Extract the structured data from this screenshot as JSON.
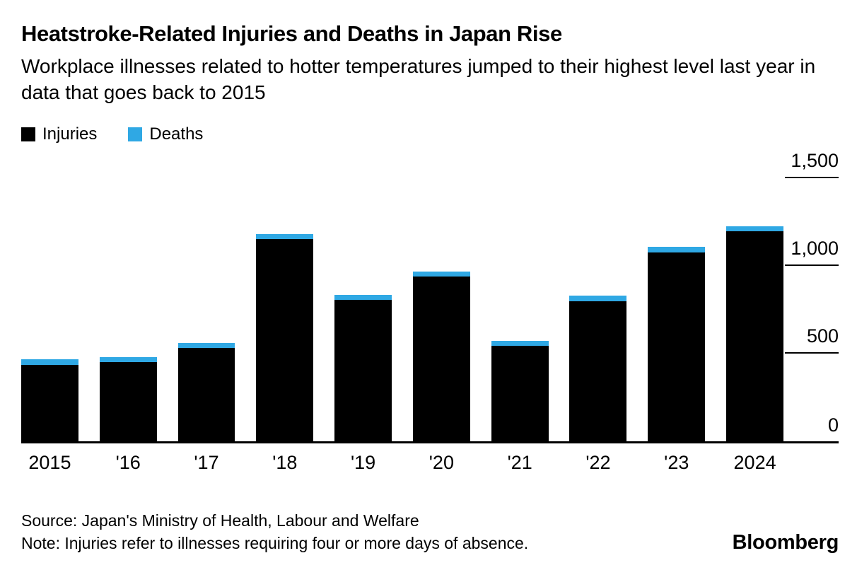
{
  "header": {
    "title": "Heatstroke-Related Injuries and Deaths in Japan Rise",
    "subtitle": "Workplace illnesses related to hotter temperatures jumped to their highest level last year in data that goes back to 2015"
  },
  "legend": [
    {
      "label": "Injuries",
      "color": "#000000"
    },
    {
      "label": "Deaths",
      "color": "#2fa8e4"
    }
  ],
  "chart_data": {
    "type": "bar",
    "stacked": true,
    "title": "Heatstroke-Related Injuries and Deaths in Japan Rise",
    "categories": [
      "2015",
      "'16",
      "'17",
      "'18",
      "'19",
      "'20",
      "'21",
      "'22",
      "'23",
      "2024"
    ],
    "series": [
      {
        "name": "Injuries",
        "color": "#000000",
        "values": [
          435,
          450,
          530,
          1150,
          804,
          937,
          541,
          797,
          1075,
          1195
        ]
      },
      {
        "name": "Deaths",
        "color": "#2fa8e4",
        "values": [
          29,
          12,
          14,
          28,
          25,
          22,
          20,
          30,
          31,
          31
        ]
      }
    ],
    "xlabel": "",
    "ylabel": "",
    "ylim": [
      0,
      1500
    ],
    "yticks": [
      0,
      500,
      1000,
      1500
    ],
    "ytick_labels": [
      "0",
      "500",
      "1,000",
      "1,500"
    ],
    "y_axis_side": "right",
    "grid": false,
    "legend_position": "top-left"
  },
  "footer": {
    "source": "Source: Japan's Ministry of Health, Labour and Welfare",
    "note": "Note: Injuries refer to illnesses requiring four or more days of absence.",
    "brand": "Bloomberg"
  }
}
